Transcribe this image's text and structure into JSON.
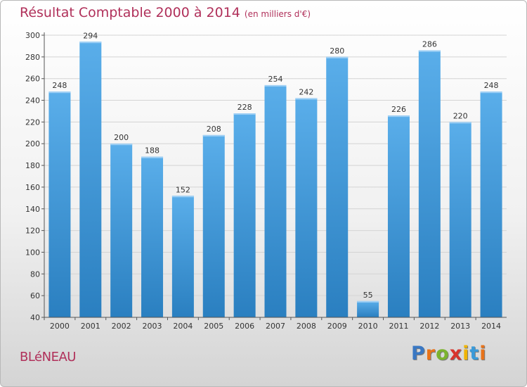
{
  "header": {
    "title": "Résultat Comptable 2000 à 2014",
    "subtitle": "(en milliers d'€)"
  },
  "footer": {
    "town": "BLéNEAU",
    "logo_letters": [
      {
        "ch": "P",
        "color": "#3a78c3"
      },
      {
        "ch": "r",
        "color": "#e8731a"
      },
      {
        "ch": "o",
        "color": "#7bb32e"
      },
      {
        "ch": "x",
        "color": "#d8342c"
      },
      {
        "ch": "i",
        "color": "#f0b400"
      },
      {
        "ch": "t",
        "color": "#3a9ad9"
      },
      {
        "ch": "i",
        "color": "#e8731a"
      }
    ]
  },
  "chart_data": {
    "type": "bar",
    "categories": [
      "2000",
      "2001",
      "2002",
      "2003",
      "2004",
      "2005",
      "2006",
      "2007",
      "2008",
      "2009",
      "2010",
      "2011",
      "2012",
      "2013",
      "2014"
    ],
    "values": [
      248,
      294,
      200,
      188,
      152,
      208,
      228,
      254,
      242,
      280,
      55,
      226,
      286,
      220,
      248
    ],
    "title": "Résultat Comptable 2000 à 2014",
    "subtitle": "(en milliers d'€)",
    "xlabel": "",
    "ylabel": "",
    "ylim": [
      40,
      300
    ],
    "yticks": [
      40,
      60,
      80,
      100,
      120,
      140,
      160,
      180,
      200,
      220,
      240,
      260,
      280,
      300
    ],
    "grid": true,
    "bar_color": "#3d95d8"
  }
}
